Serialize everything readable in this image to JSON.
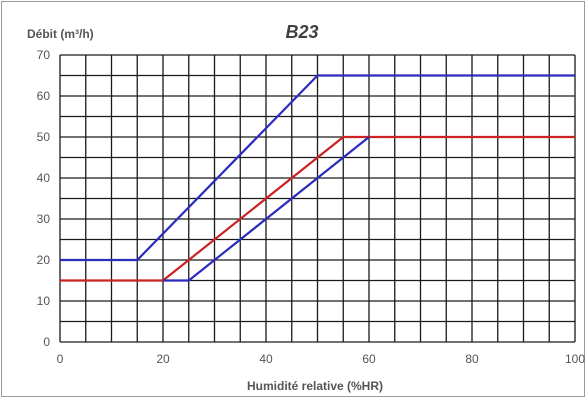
{
  "chart_data": {
    "type": "line",
    "title": "B23",
    "xlabel": "Humidité relative (%HR)",
    "ylabel": "Débit (m³/h)",
    "xlim": [
      0,
      100
    ],
    "ylim": [
      0,
      70
    ],
    "x_ticks": [
      0,
      20,
      40,
      60,
      80,
      100
    ],
    "x_tick_labels": [
      "0",
      "20",
      "40",
      "60",
      "80",
      "100"
    ],
    "y_ticks": [
      0,
      10,
      20,
      30,
      40,
      50,
      60,
      70
    ],
    "y_tick_labels": [
      "0",
      "10",
      "20",
      "30",
      "40",
      "50",
      "60",
      "70"
    ],
    "x_grid_step": 5,
    "y_grid_step": 5,
    "grid": true,
    "series": [
      {
        "color": "#2b2bbf",
        "points": [
          [
            0,
            20
          ],
          [
            15,
            20
          ],
          [
            50,
            65
          ],
          [
            100,
            65
          ]
        ]
      },
      {
        "color": "#cc2222",
        "points": [
          [
            0,
            15
          ],
          [
            20,
            15
          ],
          [
            55,
            50
          ],
          [
            60,
            50
          ],
          [
            100,
            50
          ]
        ]
      },
      {
        "color": "#2b2bbf",
        "points": [
          [
            25,
            15
          ],
          [
            60,
            50
          ]
        ]
      },
      {
        "color": "#2b2bbf",
        "points": [
          [
            20,
            15
          ],
          [
            25,
            15
          ]
        ]
      }
    ]
  }
}
